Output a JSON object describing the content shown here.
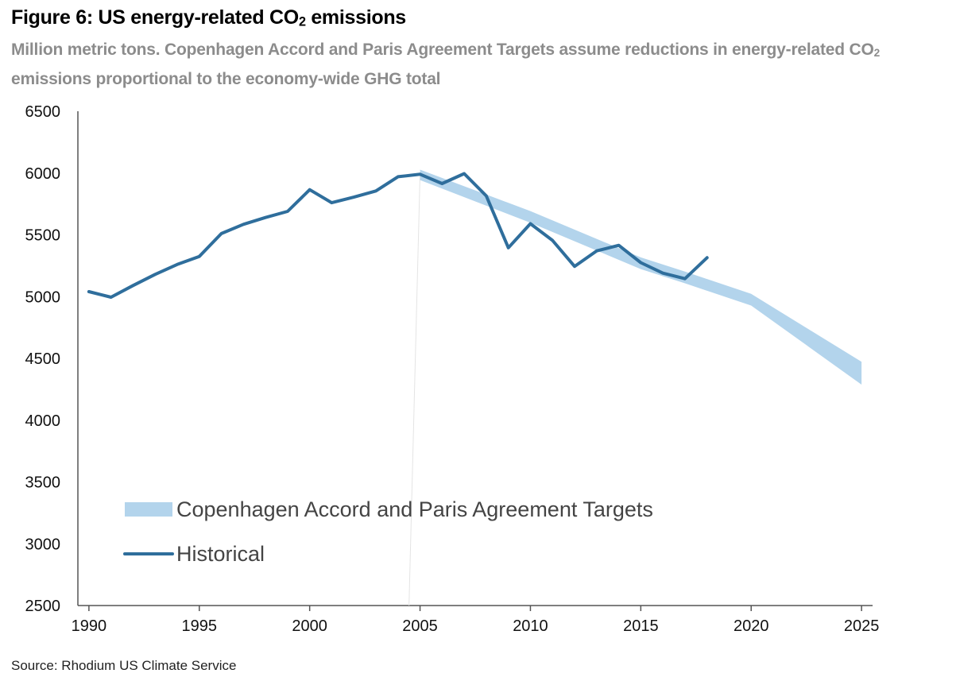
{
  "header": {
    "title_main": "Figure 6: US energy-related CO",
    "title_sub": "2",
    "title_end": " emissions",
    "subtitle_a": "Million metric tons. Copenhagen Accord and Paris Agreement Targets assume reductions in energy-related CO",
    "subtitle_sub": "2",
    "subtitle_b": " emissions proportional to the economy-wide GHG total"
  },
  "source": "Source: Rhodium US Climate Service",
  "colors": {
    "historical": "#2f6e9c",
    "targets": "#b3d4ec",
    "axis": "#555555"
  },
  "chart_data": {
    "type": "line",
    "title": "Figure 6: US energy-related CO2 emissions",
    "subtitle": "Million metric tons. Copenhagen Accord and Paris Agreement Targets assume reductions in energy-related CO2 emissions proportional to the economy-wide GHG total",
    "xlabel": "",
    "ylabel": "",
    "xlim": [
      1989.5,
      2025.5
    ],
    "ylim": [
      2500,
      6500
    ],
    "x_ticks": [
      1990,
      1995,
      2000,
      2005,
      2010,
      2015,
      2020,
      2025
    ],
    "y_ticks": [
      2500,
      3000,
      3500,
      4000,
      4500,
      5000,
      5500,
      6000,
      6500
    ],
    "grid": false,
    "legend": "bottom-left",
    "series": [
      {
        "name": "Historical",
        "kind": "line",
        "x": [
          1990,
          1991,
          1992,
          1993,
          1994,
          1995,
          1996,
          1997,
          1998,
          1999,
          2000,
          2001,
          2002,
          2003,
          2004,
          2005,
          2006,
          2007,
          2008,
          2009,
          2010,
          2011,
          2012,
          2013,
          2014,
          2015,
          2016,
          2017,
          2018
        ],
        "values": [
          5040,
          4995,
          5090,
          5180,
          5260,
          5325,
          5510,
          5585,
          5640,
          5690,
          5865,
          5760,
          5805,
          5855,
          5970,
          5990,
          5915,
          5995,
          5815,
          5395,
          5590,
          5455,
          5245,
          5370,
          5415,
          5275,
          5190,
          5145,
          5315
        ]
      },
      {
        "name": "Copenhagen Accord and Paris Agreement Targets",
        "kind": "band",
        "x": [
          2005,
          2010,
          2015,
          2017,
          2020,
          2025
        ],
        "upper": [
          5995,
          5660,
          5285,
          5170,
          4990,
          4440
        ],
        "lower": [
          5975,
          5630,
          5255,
          5140,
          4960,
          4320
        ]
      }
    ]
  }
}
